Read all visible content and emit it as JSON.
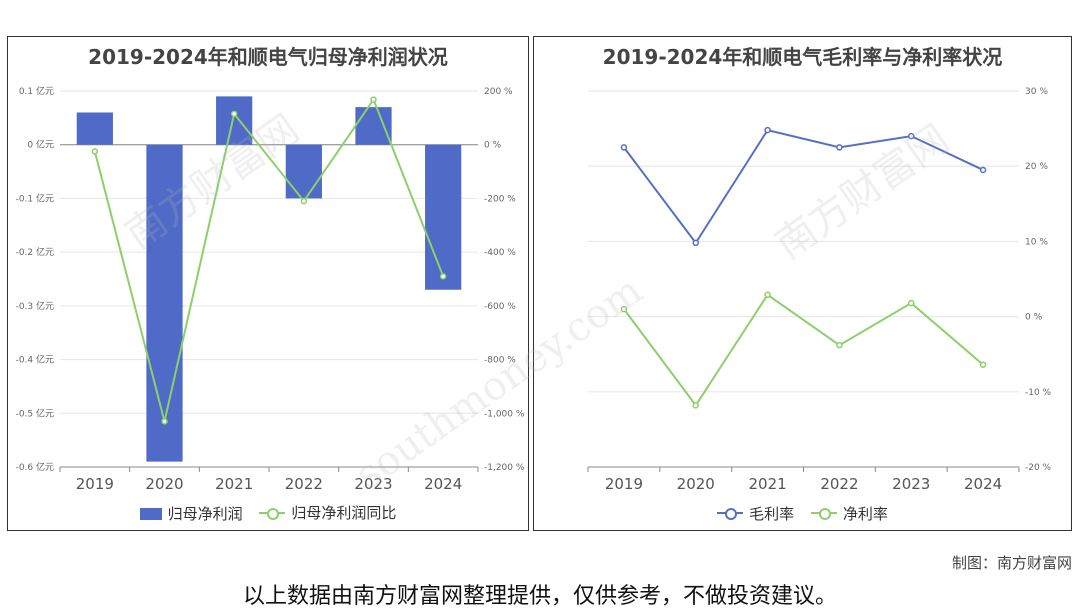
{
  "footer": {
    "credit": "制图：南方财富网",
    "disclaimer": "以上数据由南方财富网整理提供，仅供参考，不做投资建议。"
  },
  "watermark": {
    "cn": "南方财富网",
    "en": "southmoney.com"
  },
  "colors": {
    "bar": "#4f6bc7",
    "line_green": "#8ccf6b",
    "line_blue": "#5470c6"
  },
  "chart_data": [
    {
      "type": "bar",
      "title": "2019-2024年和顺电气归母净利润状况",
      "categories": [
        "2019",
        "2020",
        "2021",
        "2022",
        "2023",
        "2024"
      ],
      "series": [
        {
          "name": "归母净利润",
          "type": "bar",
          "axis": "left",
          "values": [
            0.06,
            -0.59,
            0.09,
            -0.1,
            0.07,
            -0.27
          ]
        },
        {
          "name": "归母净利润同比",
          "type": "line",
          "axis": "right",
          "values": [
            -25,
            -1030,
            115,
            -210,
            168,
            -490
          ]
        }
      ],
      "yleft": {
        "ylim": [
          -0.6,
          0.1
        ],
        "ticks": [
          0.1,
          0,
          -0.1,
          -0.2,
          -0.3,
          -0.4,
          -0.5,
          -0.6
        ],
        "tick_labels": [
          "0.1 亿元",
          "0 亿元",
          "-0.1 亿元",
          "-0.2 亿元",
          "-0.3 亿元",
          "-0.4 亿元",
          "-0.5 亿元",
          "-0.6 亿元"
        ]
      },
      "yright": {
        "ylim": [
          -1200,
          200
        ],
        "ticks": [
          200,
          0,
          -200,
          -400,
          -600,
          -800,
          -1000,
          -1200
        ],
        "tick_labels": [
          "200 %",
          "0 %",
          "-200 %",
          "-400 %",
          "-600 %",
          "-800 %",
          "-1,000 %",
          "-1,200 %"
        ]
      },
      "legend": "bottom",
      "grid": true
    },
    {
      "type": "line",
      "title": "2019-2024年和顺电气毛利率与净利率状况",
      "categories": [
        "2019",
        "2020",
        "2021",
        "2022",
        "2023",
        "2024"
      ],
      "series": [
        {
          "name": "毛利率",
          "values": [
            22.5,
            9.8,
            24.8,
            22.5,
            24.0,
            19.5
          ]
        },
        {
          "name": "净利率",
          "values": [
            1.0,
            -11.8,
            2.9,
            -3.8,
            1.8,
            -6.4
          ]
        }
      ],
      "yright": {
        "ylim": [
          -20,
          30
        ],
        "ticks": [
          30,
          20,
          10,
          0,
          -10,
          -20
        ],
        "tick_labels": [
          "30 %",
          "20 %",
          "10 %",
          "0 %",
          "-10 %",
          "-20 %"
        ]
      },
      "legend": "bottom",
      "grid": true
    }
  ]
}
